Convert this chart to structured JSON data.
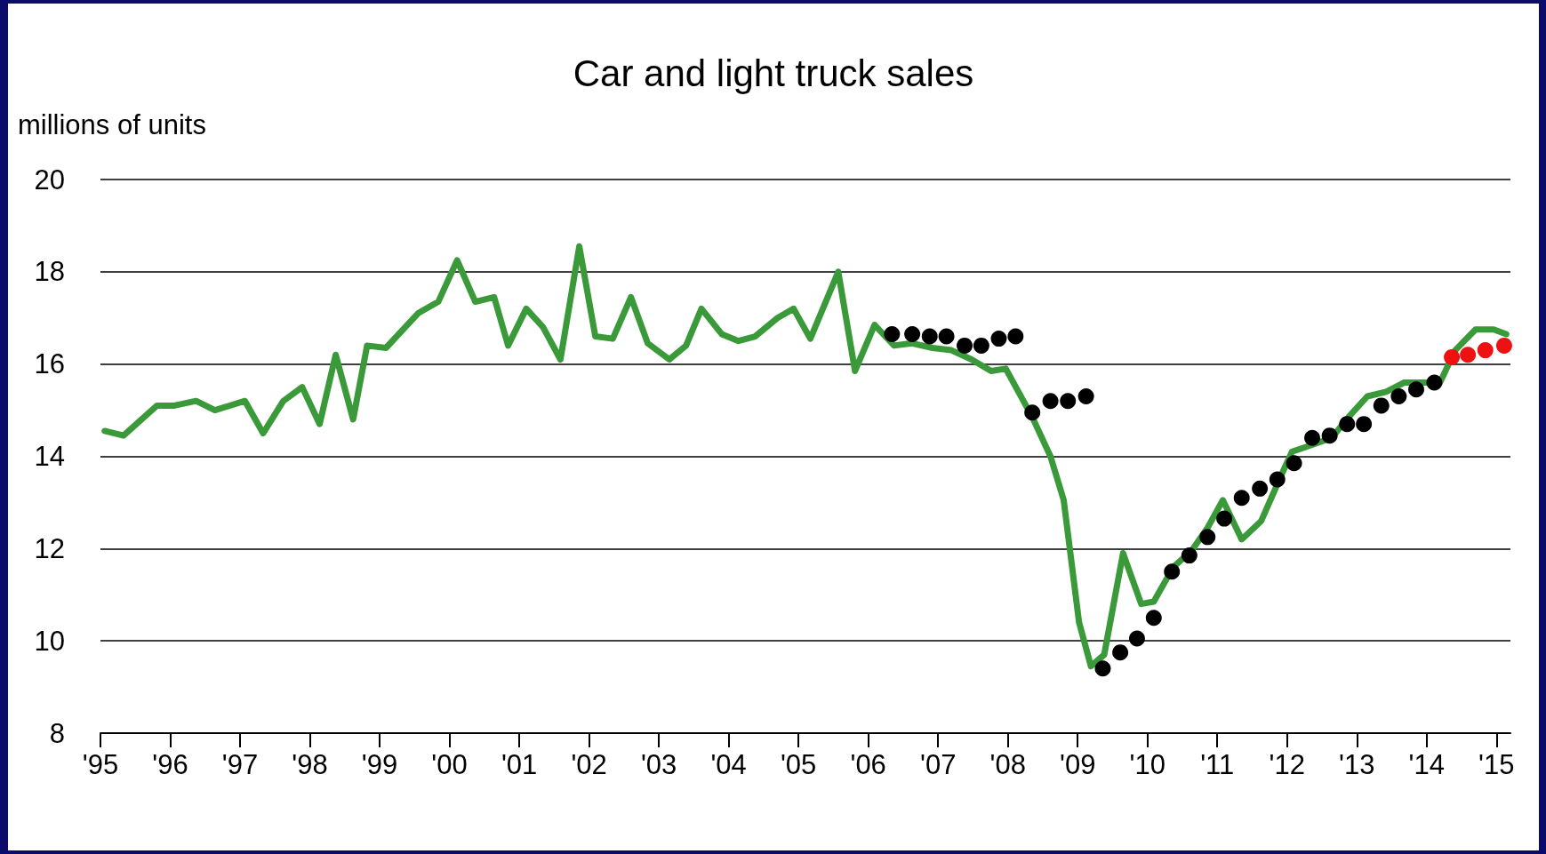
{
  "chart_data": {
    "type": "line",
    "title": "Car and light truck sales",
    "ylabel": "millions of units",
    "xlim": [
      1995,
      2015.2
    ],
    "xticks": [
      {
        "value": 1995,
        "label": "'95"
      },
      {
        "value": 1996,
        "label": "'96"
      },
      {
        "value": 1997,
        "label": "'97"
      },
      {
        "value": 1998,
        "label": "'98"
      },
      {
        "value": 1999,
        "label": "'99"
      },
      {
        "value": 2000,
        "label": "'00"
      },
      {
        "value": 2001,
        "label": "'01"
      },
      {
        "value": 2002,
        "label": "'02"
      },
      {
        "value": 2003,
        "label": "'03"
      },
      {
        "value": 2004,
        "label": "'04"
      },
      {
        "value": 2005,
        "label": "'05"
      },
      {
        "value": 2006,
        "label": "'06"
      },
      {
        "value": 2007,
        "label": "'07"
      },
      {
        "value": 2008,
        "label": "'08"
      },
      {
        "value": 2009,
        "label": "'09"
      },
      {
        "value": 2010,
        "label": "'10"
      },
      {
        "value": 2011,
        "label": "'11"
      },
      {
        "value": 2012,
        "label": "'12"
      },
      {
        "value": 2013,
        "label": "'13"
      },
      {
        "value": 2014,
        "label": "'14"
      },
      {
        "value": 2015,
        "label": "'15"
      }
    ],
    "ylim": [
      8,
      20
    ],
    "yticks": [
      8,
      10,
      12,
      14,
      16,
      18,
      20
    ],
    "grid": "y",
    "line_style": "solid",
    "series": [
      {
        "marker": "none",
        "color": "#3a9a3a",
        "x": [
          1995.06,
          1995.33,
          1995.81,
          1996.06,
          1996.37,
          1996.64,
          1997.07,
          1997.33,
          1997.62,
          1997.89,
          1998.14,
          1998.37,
          1998.62,
          1998.82,
          1999.09,
          1999.55,
          1999.84,
          2000.11,
          2000.37,
          2000.64,
          2000.84,
          2001.1,
          2001.34,
          2001.59,
          2001.86,
          2002.09,
          2002.34,
          2002.6,
          2002.84,
          2003.15,
          2003.39,
          2003.61,
          2003.9,
          2004.14,
          2004.38,
          2004.7,
          2004.93,
          2005.17,
          2005.57,
          2005.81,
          2006.09,
          2006.37,
          2006.63,
          2006.92,
          2007.19,
          2007.48,
          2007.76,
          2007.97,
          2008.35,
          2008.61,
          2008.8,
          2009.02,
          2009.19,
          2009.38,
          2009.65,
          2009.91,
          2010.09,
          2010.37,
          2010.63,
          2010.86,
          2011.08,
          2011.35,
          2011.63,
          2011.92,
          2012.07,
          2012.36,
          2012.64,
          2012.88,
          2013.15,
          2013.42,
          2013.68,
          2013.88,
          2014.19,
          2014.41,
          2014.7,
          2014.96,
          2015.14
        ],
        "values": [
          14.55,
          14.45,
          15.1,
          15.1,
          15.2,
          15.0,
          15.2,
          14.5,
          15.2,
          15.5,
          14.7,
          16.2,
          14.8,
          16.4,
          16.35,
          17.1,
          17.35,
          18.25,
          17.35,
          17.45,
          16.4,
          17.2,
          16.8,
          16.1,
          18.55,
          16.6,
          16.55,
          17.45,
          16.45,
          16.1,
          16.4,
          17.2,
          16.65,
          16.5,
          16.6,
          17.0,
          17.2,
          16.55,
          18.0,
          15.85,
          16.85,
          16.4,
          16.45,
          16.35,
          16.3,
          16.1,
          15.85,
          15.9,
          14.85,
          14.0,
          13.05,
          10.4,
          9.45,
          9.7,
          11.9,
          10.8,
          10.85,
          11.6,
          11.95,
          12.45,
          13.05,
          12.2,
          12.6,
          13.6,
          14.1,
          14.25,
          14.4,
          14.85,
          15.3,
          15.4,
          15.6,
          15.6,
          15.6,
          16.3,
          16.75,
          16.75,
          16.65
        ]
      },
      {
        "type": "scatter",
        "marker": "circle",
        "color": "#000000",
        "x": [
          2006.34,
          2006.63,
          2006.88,
          2007.12,
          2007.38,
          2007.62,
          2007.87,
          2008.11,
          2008.35,
          2008.61,
          2008.86,
          2009.12,
          2009.36,
          2009.61,
          2009.85,
          2010.09,
          2010.35,
          2010.6,
          2010.86,
          2011.1,
          2011.35,
          2011.61,
          2011.86,
          2012.1,
          2012.36,
          2012.61,
          2012.86,
          2013.1,
          2013.35,
          2013.6,
          2013.85,
          2014.11
        ],
        "values": [
          16.65,
          16.65,
          16.6,
          16.6,
          16.4,
          16.4,
          16.55,
          16.6,
          14.95,
          15.2,
          15.2,
          15.3,
          9.4,
          9.75,
          10.05,
          10.5,
          11.5,
          11.85,
          12.25,
          12.65,
          13.1,
          13.3,
          13.5,
          13.85,
          14.4,
          14.45,
          14.7,
          14.7,
          15.1,
          15.3,
          15.45,
          15.6
        ]
      },
      {
        "type": "scatter",
        "marker": "circle",
        "color": "#ee1111",
        "x": [
          2014.36,
          2014.59,
          2014.84,
          2015.11
        ],
        "values": [
          16.15,
          16.2,
          16.3,
          16.4
        ]
      }
    ]
  }
}
